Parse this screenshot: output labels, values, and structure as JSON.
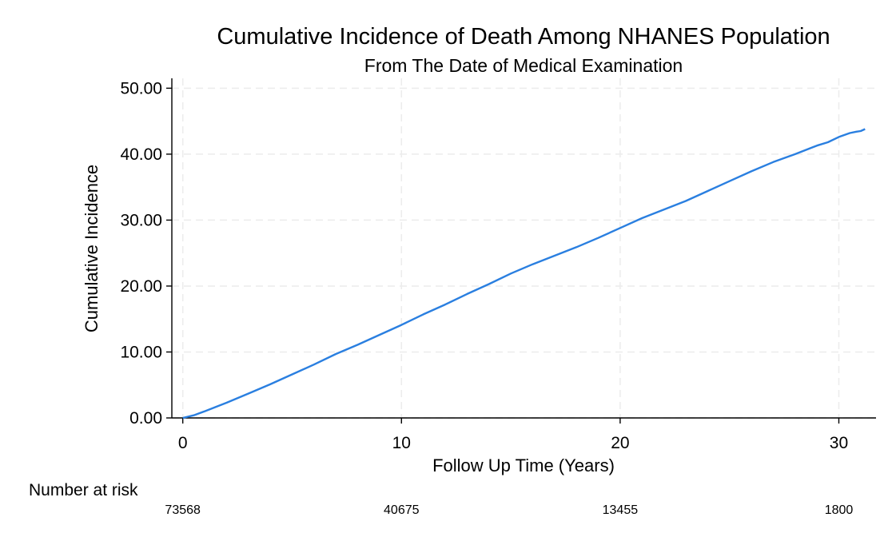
{
  "chart_data": {
    "type": "line",
    "title": "Cumulative Incidence of Death Among NHANES Population",
    "subtitle": "From The Date of Medical Examination",
    "xlabel": "Follow Up Time (Years)",
    "ylabel": "Cumulative Incidence",
    "xlim": [
      -0.5,
      31.7
    ],
    "ylim": [
      0,
      51.5
    ],
    "x_ticks": [
      0,
      10,
      20,
      30
    ],
    "y_ticks": [
      0,
      10,
      20,
      30,
      40,
      50
    ],
    "y_tick_labels": [
      "0.00",
      "10.00",
      "20.00",
      "30.00",
      "40.00",
      "50.00"
    ],
    "grid": true,
    "line_color": "#2a7fe0",
    "series": [
      {
        "x": [
          0,
          0.5,
          1,
          2,
          3,
          4,
          5,
          6,
          7,
          8,
          9,
          10,
          11,
          12,
          13,
          14,
          15,
          16,
          17,
          18,
          19,
          20,
          21,
          22,
          23,
          24,
          25,
          26,
          27,
          28,
          29,
          29.5,
          30,
          30.5,
          30.8,
          31,
          31.2
        ],
        "y": [
          0,
          0.4,
          1.0,
          2.3,
          3.7,
          5.1,
          6.6,
          8.1,
          9.7,
          11.1,
          12.6,
          14.1,
          15.7,
          17.2,
          18.8,
          20.3,
          21.9,
          23.3,
          24.6,
          25.9,
          27.3,
          28.8,
          30.3,
          31.6,
          32.9,
          34.4,
          35.9,
          37.4,
          38.8,
          40.0,
          41.3,
          41.8,
          42.6,
          43.2,
          43.4,
          43.5,
          43.8
        ]
      }
    ],
    "risk_table": {
      "label": "Number at risk",
      "times": [
        0,
        10,
        20,
        30
      ],
      "counts": [
        "73568",
        "40675",
        "13455",
        "1800"
      ]
    }
  }
}
